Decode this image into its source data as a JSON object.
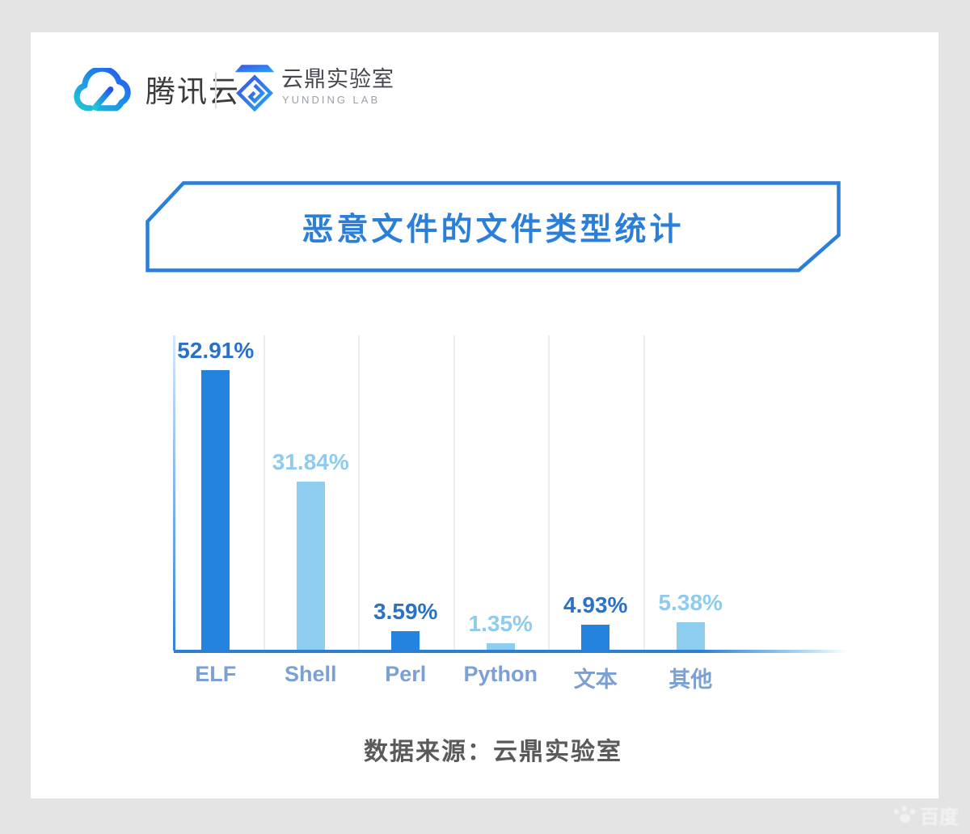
{
  "header": {
    "tencent_logo": {
      "icon": "tencent-cloud-icon",
      "text": "腾讯云"
    },
    "lab_logo": {
      "icon": "yunding-lab-icon",
      "name_cn": "云鼎实验室",
      "name_en": "YUNDING LAB"
    }
  },
  "banner": {
    "title": "恶意文件的文件类型统计",
    "border_color": "#2b7fd8",
    "text_color": "#2b7fd8"
  },
  "chart_data": {
    "type": "bar",
    "title": "恶意文件的文件类型统计",
    "categories": [
      "ELF",
      "Shell",
      "Perl",
      "Python",
      "文本",
      "其他"
    ],
    "values": [
      52.91,
      31.84,
      3.59,
      1.35,
      4.93,
      5.38
    ],
    "value_labels": [
      "52.91%",
      "31.84%",
      "3.59%",
      "1.35%",
      "4.93%",
      "5.38%"
    ],
    "unit": "percent",
    "ylim": [
      0,
      55
    ],
    "xlabel": "",
    "ylabel": "",
    "legend": "none",
    "grid": "vertical category separators, light gray; no horizontal gridlines; no y-axis ticks",
    "bar_color_pattern": [
      "dark",
      "light",
      "dark",
      "light",
      "dark",
      "light"
    ],
    "colors": {
      "bar_dark": "#2383de",
      "bar_light": "#8dcdf0",
      "value_label_dark": "#2a72c7",
      "value_label_light": "#8ecbee",
      "category_label": "#7aa0d4",
      "axis": "#2e7ed5",
      "gridline": "#ededed"
    }
  },
  "footer": {
    "source": "数据来源：云鼎实验室"
  },
  "watermark": {
    "icon": "paw-icon",
    "text": "百度"
  }
}
